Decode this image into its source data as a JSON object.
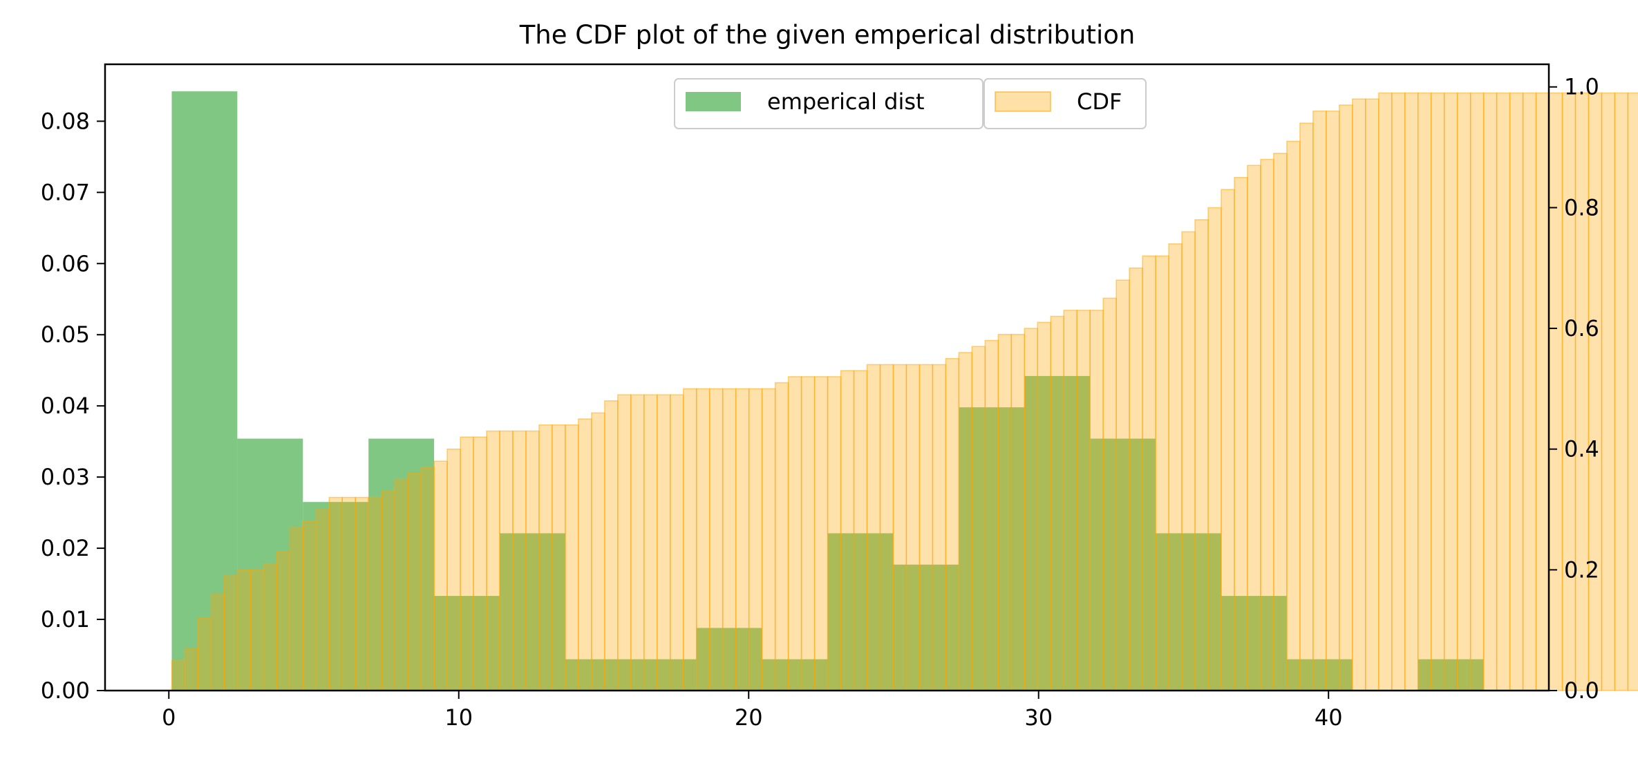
{
  "chart_data": {
    "type": "bar",
    "title": "The CDF plot of the given emperical distribution",
    "xlabel": "",
    "ylabel_left": "",
    "ylabel_right": "",
    "xlim": [
      -2.2,
      47.6
    ],
    "ylim_left": [
      0,
      0.088
    ],
    "ylim_right": [
      0,
      1.0375
    ],
    "x_ticks": [
      "0",
      "10",
      "20",
      "30",
      "40"
    ],
    "y_ticks_left": [
      "0.00",
      "0.01",
      "0.02",
      "0.03",
      "0.04",
      "0.05",
      "0.06",
      "0.07",
      "0.08"
    ],
    "y_ticks_right": [
      "0.0",
      "0.2",
      "0.4",
      "0.6",
      "0.8",
      "1.0"
    ],
    "grid": false,
    "legend_position": "top-center",
    "series": [
      {
        "name": "emperical dist",
        "axis": "left",
        "color": "#4caf50",
        "bin_start": 0.1,
        "bin_width": 2.2625,
        "values": [
          0.0842,
          0.0354,
          0.0265,
          0.0354,
          0.0133,
          0.0221,
          0.0044,
          0.0044,
          0.0088,
          0.0044,
          0.0221,
          0.0177,
          0.0398,
          0.0442,
          0.0354,
          0.0221,
          0.0133,
          0.0044,
          0.0,
          0.0044
        ]
      },
      {
        "name": "CDF",
        "axis": "right",
        "color": "#ffa500",
        "bin_start": 0.1,
        "bin_width": 0.4525,
        "values": [
          0.05,
          0.07,
          0.12,
          0.16,
          0.19,
          0.2,
          0.2,
          0.21,
          0.23,
          0.27,
          0.28,
          0.3,
          0.32,
          0.32,
          0.32,
          0.32,
          0.33,
          0.35,
          0.36,
          0.37,
          0.38,
          0.4,
          0.42,
          0.42,
          0.43,
          0.43,
          0.43,
          0.43,
          0.44,
          0.44,
          0.44,
          0.45,
          0.46,
          0.48,
          0.49,
          0.49,
          0.49,
          0.49,
          0.49,
          0.5,
          0.5,
          0.5,
          0.5,
          0.5,
          0.5,
          0.5,
          0.51,
          0.52,
          0.52,
          0.52,
          0.52,
          0.53,
          0.53,
          0.54,
          0.54,
          0.54,
          0.54,
          0.54,
          0.54,
          0.55,
          0.56,
          0.57,
          0.58,
          0.59,
          0.59,
          0.6,
          0.61,
          0.62,
          0.63,
          0.63,
          0.63,
          0.65,
          0.68,
          0.7,
          0.72,
          0.72,
          0.74,
          0.76,
          0.78,
          0.8,
          0.83,
          0.85,
          0.87,
          0.88,
          0.89,
          0.91,
          0.94,
          0.96,
          0.96,
          0.97,
          0.98,
          0.98,
          0.99,
          0.99,
          0.99,
          0.99,
          0.99,
          0.99,
          0.99,
          0.99,
          0.99,
          0.99,
          0.99,
          0.99,
          0.99,
          0.99,
          0.99,
          0.99,
          0.99,
          0.99,
          0.99,
          0.99,
          0.99,
          0.99,
          0.99,
          0.99,
          0.99,
          0.99,
          0.99,
          0.99,
          0.99,
          0.99,
          0.99,
          0.99,
          0.99,
          0.99,
          0.99,
          0.99,
          0.99,
          0.99,
          0.99,
          0.99,
          0.99,
          0.99,
          0.99,
          0.99,
          1.0
        ]
      }
    ]
  }
}
